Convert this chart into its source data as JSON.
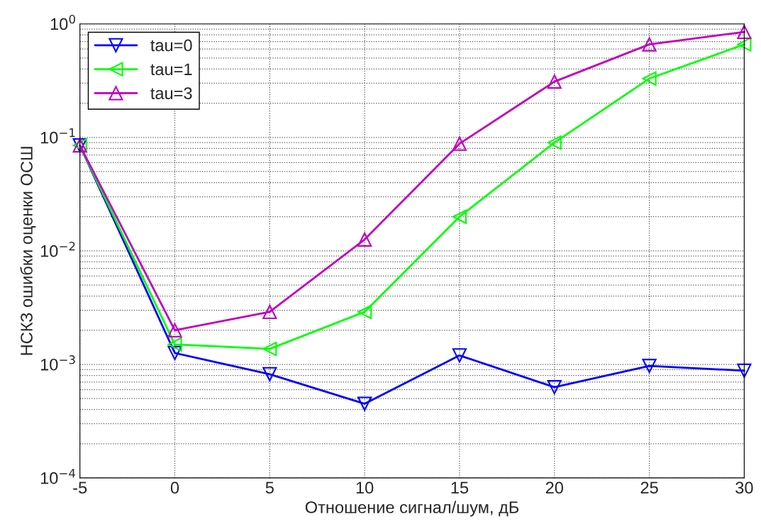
{
  "chart_data": {
    "type": "line",
    "xlabel": "Отношение сигнал/шум, дБ",
    "ylabel": "НСКЗ ошибки оценки ОСШ",
    "x": [
      -5,
      0,
      5,
      10,
      15,
      20,
      25,
      30
    ],
    "series": [
      {
        "name": "tau=0",
        "color": "#0000ff",
        "marker": "triangle_down",
        "values": [
          0.085,
          0.00126,
          0.00082,
          0.00045,
          0.0012,
          0.00063,
          0.00097,
          0.00088
        ]
      },
      {
        "name": "tau=1",
        "color": "#00ff00",
        "marker": "triangle_left",
        "values": [
          0.085,
          0.0015,
          0.00137,
          0.0029,
          0.02,
          0.09,
          0.33,
          0.66
        ]
      },
      {
        "name": "tau=3",
        "color": "#bf00bf",
        "marker": "triangle",
        "values": [
          0.085,
          0.002,
          0.0029,
          0.0126,
          0.088,
          0.31,
          0.66,
          0.85
        ]
      }
    ],
    "log": "y",
    "xlim": [
      -5,
      30
    ],
    "xticks": [
      -5,
      0,
      5,
      10,
      15,
      20,
      25,
      30
    ],
    "ylim": [
      0.0001,
      1
    ],
    "yticks": [
      {
        "value": 0.0001,
        "label": "10$^{−4}$"
      },
      {
        "value": 0.001,
        "label": "10$^{−3}$"
      },
      {
        "value": 0.01,
        "label": "10$^{−2}$"
      },
      {
        "value": 0.1,
        "label": "10$^{−1}$"
      },
      {
        "value": 1,
        "label": "10$^{0}$"
      }
    ],
    "grid": true,
    "legend": "top left",
    "line_style": "solid"
  }
}
